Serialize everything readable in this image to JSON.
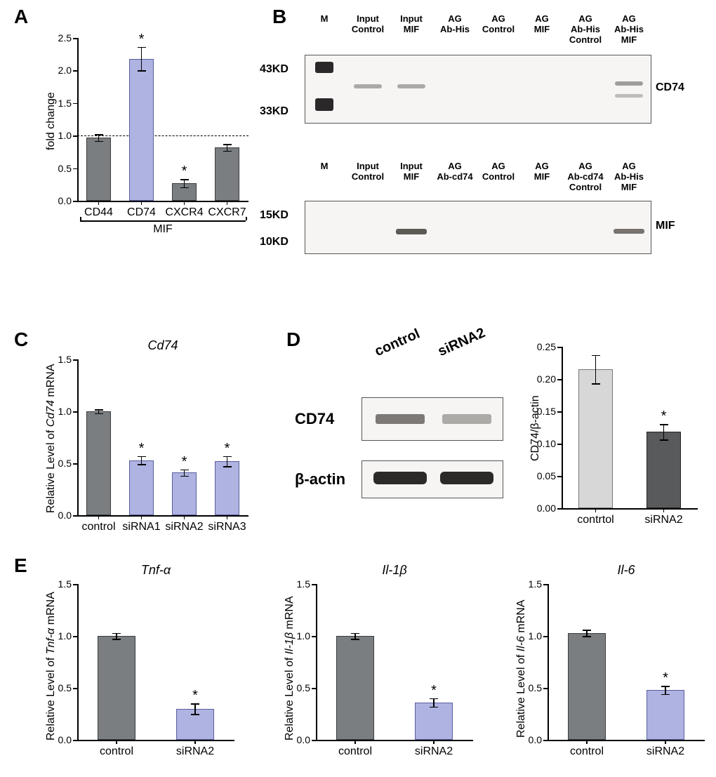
{
  "panels": {
    "A": "A",
    "B": "B",
    "C": "C",
    "D": "D",
    "E": "E"
  },
  "colors": {
    "gray_bar": "#7b7e81",
    "gray_edge": "#3a3b3c",
    "lilac_bar": "#aeb3e2",
    "lilac_edge": "#5a5e9c",
    "lightgray_bar": "#d7d7d7",
    "darkgray_bar": "#585a5c",
    "axis": "#000000",
    "blot_band": "#7a7674",
    "blot_dark": "#3c3a39",
    "blot_bg": "#f6f5f4"
  },
  "A": {
    "ylabel": "fold change",
    "xgroup": "MIF",
    "ylim": [
      0,
      2.5
    ],
    "yticks": [
      0.0,
      0.5,
      1.0,
      1.5,
      2.0,
      2.5
    ],
    "dashed_y": 1.0,
    "bars": [
      {
        "label": "CD44",
        "val": 0.97,
        "err": 0.05,
        "color": "gray",
        "sig": false
      },
      {
        "label": "CD74",
        "val": 2.18,
        "err": 0.18,
        "color": "lilac",
        "sig": true
      },
      {
        "label": "CXCR4",
        "val": 0.27,
        "err": 0.06,
        "color": "gray",
        "sig": true
      },
      {
        "label": "CXCR7",
        "val": 0.82,
        "err": 0.05,
        "color": "gray",
        "sig": false
      }
    ]
  },
  "B": {
    "top": {
      "lanes": [
        "M",
        "Input\nControl",
        "Input\nMIF",
        "AG\nAb-His",
        "AG\nControl",
        "AG\nMIF",
        "AG\nAb-His\nControl",
        "AG\nAb-His\nMIF"
      ],
      "mw": [
        "43KD",
        "33KD"
      ],
      "right": "CD74"
    },
    "bot": {
      "lanes": [
        "M",
        "Input\nControl",
        "Input\nMIF",
        "AG\nAb-cd74",
        "AG\nControl",
        "AG\nMIF",
        "AG\nAb-cd74\nControl",
        "AG\nAb-His\nMIF"
      ],
      "mw": [
        "15KD",
        "10KD"
      ],
      "right": "MIF"
    }
  },
  "C": {
    "title": "Cd74",
    "ylabel": "Relative Level of Cd74 mRNA",
    "ylim": [
      0,
      1.5
    ],
    "yticks": [
      0.0,
      0.5,
      1.0,
      1.5
    ],
    "bars": [
      {
        "label": "control",
        "val": 1.0,
        "err": 0.02,
        "color": "gray",
        "sig": false
      },
      {
        "label": "siRNA1",
        "val": 0.53,
        "err": 0.04,
        "color": "lilac",
        "sig": true
      },
      {
        "label": "siRNA2",
        "val": 0.41,
        "err": 0.03,
        "color": "lilac",
        "sig": true
      },
      {
        "label": "siRNA3",
        "val": 0.52,
        "err": 0.05,
        "color": "lilac",
        "sig": true
      }
    ]
  },
  "D": {
    "lanes": [
      "control",
      "siRNA2"
    ],
    "rows": [
      "CD74",
      "β-actin"
    ],
    "ylabel": "CD74/β-actin",
    "ylim": [
      0,
      0.25
    ],
    "yticks": [
      0.0,
      0.05,
      0.1,
      0.15,
      0.2,
      0.25
    ],
    "bars": [
      {
        "label": "contrtol",
        "val": 0.215,
        "err": 0.022,
        "color": "light",
        "sig": false
      },
      {
        "label": "siRNA2",
        "val": 0.118,
        "err": 0.012,
        "color": "dark",
        "sig": true
      }
    ]
  },
  "E": [
    {
      "title": "Tnf-α",
      "ylabel": "Relative Level of Tnf-α mRNA",
      "ylim": [
        0,
        1.5
      ],
      "yticks": [
        0.0,
        0.5,
        1.0,
        1.5
      ],
      "bars": [
        {
          "label": "control",
          "val": 1.0,
          "err": 0.03,
          "color": "gray",
          "sig": false
        },
        {
          "label": "siRNA2",
          "val": 0.3,
          "err": 0.05,
          "color": "lilac",
          "sig": true
        }
      ]
    },
    {
      "title": "Il-1β",
      "ylabel": "Relative Level of Il-1β mRNA",
      "ylim": [
        0,
        1.5
      ],
      "yticks": [
        0.0,
        0.5,
        1.0,
        1.5
      ],
      "bars": [
        {
          "label": "control",
          "val": 1.0,
          "err": 0.03,
          "color": "gray",
          "sig": false
        },
        {
          "label": "siRNA2",
          "val": 0.36,
          "err": 0.04,
          "color": "lilac",
          "sig": true
        }
      ]
    },
    {
      "title": "Il-6",
      "ylabel": "Relative Level of Il-6 mRNA",
      "ylim": [
        0,
        1.5
      ],
      "yticks": [
        0.0,
        0.5,
        1.0,
        1.5
      ],
      "bars": [
        {
          "label": "control",
          "val": 1.03,
          "err": 0.03,
          "color": "gray",
          "sig": false
        },
        {
          "label": "siRNA2",
          "val": 0.48,
          "err": 0.04,
          "color": "lilac",
          "sig": true
        }
      ]
    }
  ]
}
